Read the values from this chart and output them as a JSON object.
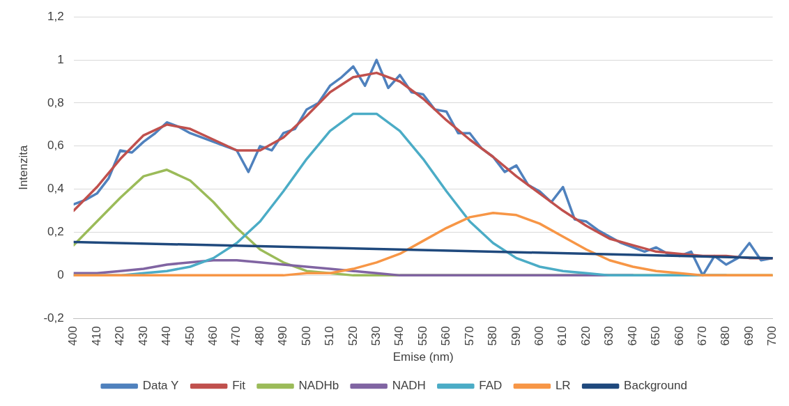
{
  "chart_data": {
    "type": "line",
    "xlabel": "Emise (nm)",
    "ylabel": "Intenzita",
    "x": [
      400,
      410,
      420,
      430,
      440,
      450,
      460,
      470,
      480,
      490,
      500,
      510,
      520,
      530,
      540,
      550,
      560,
      570,
      580,
      590,
      600,
      610,
      620,
      630,
      640,
      650,
      660,
      670,
      680,
      690,
      700
    ],
    "xlim": [
      400,
      700
    ],
    "xticks": [
      400,
      410,
      420,
      430,
      440,
      450,
      460,
      470,
      480,
      490,
      500,
      510,
      520,
      530,
      540,
      550,
      560,
      570,
      580,
      590,
      600,
      610,
      620,
      630,
      640,
      650,
      660,
      670,
      680,
      690,
      700
    ],
    "ylim": [
      -0.2,
      1.2
    ],
    "yticks": [
      {
        "value": -0.2,
        "label": "-0,2"
      },
      0,
      {
        "value": 0.2,
        "label": "0,2"
      },
      {
        "value": 0.4,
        "label": "0,4"
      },
      {
        "value": 0.6,
        "label": "0,6"
      },
      {
        "value": 0.8,
        "label": "0,8"
      },
      1,
      {
        "value": 1.2,
        "label": "1,2"
      }
    ],
    "grid": "y",
    "legend": "bottom",
    "marker": "none",
    "line_style": "solid",
    "series": [
      {
        "name": "Data Y",
        "color": "#4f81bd",
        "x": [
          400,
          405,
          410,
          415,
          420,
          425,
          430,
          435,
          440,
          445,
          450,
          455,
          460,
          465,
          470,
          475,
          480,
          485,
          490,
          495,
          500,
          505,
          510,
          515,
          520,
          525,
          530,
          535,
          540,
          545,
          550,
          555,
          560,
          565,
          570,
          575,
          580,
          585,
          590,
          595,
          600,
          605,
          610,
          615,
          620,
          625,
          630,
          635,
          640,
          645,
          650,
          655,
          660,
          665,
          670,
          675,
          680,
          685,
          690,
          695,
          700
        ],
        "values": [
          0.33,
          0.35,
          0.38,
          0.45,
          0.58,
          0.57,
          0.62,
          0.66,
          0.71,
          0.69,
          0.66,
          0.64,
          0.62,
          0.6,
          0.58,
          0.48,
          0.6,
          0.58,
          0.66,
          0.68,
          0.77,
          0.8,
          0.88,
          0.92,
          0.97,
          0.88,
          1.0,
          0.87,
          0.93,
          0.85,
          0.84,
          0.77,
          0.76,
          0.66,
          0.66,
          0.59,
          0.55,
          0.48,
          0.51,
          0.42,
          0.39,
          0.34,
          0.41,
          0.26,
          0.25,
          0.21,
          0.18,
          0.15,
          0.13,
          0.11,
          0.13,
          0.1,
          0.09,
          0.11,
          0.0,
          0.09,
          0.05,
          0.08,
          0.15,
          0.07,
          0.08
        ]
      },
      {
        "name": "Fit",
        "color": "#c0504d",
        "values": [
          0.3,
          0.41,
          0.54,
          0.65,
          0.7,
          0.68,
          0.63,
          0.58,
          0.58,
          0.64,
          0.74,
          0.85,
          0.92,
          0.94,
          0.9,
          0.82,
          0.72,
          0.63,
          0.55,
          0.46,
          0.38,
          0.3,
          0.23,
          0.17,
          0.14,
          0.11,
          0.1,
          0.09,
          0.09,
          0.08,
          0.08
        ]
      },
      {
        "name": "NADHb",
        "color": "#9bbb59",
        "values": [
          0.14,
          0.25,
          0.36,
          0.46,
          0.49,
          0.44,
          0.34,
          0.22,
          0.12,
          0.06,
          0.02,
          0.01,
          0,
          0,
          0,
          0,
          0,
          0,
          0,
          0,
          0,
          0,
          0,
          0,
          0,
          0,
          0,
          0,
          0,
          0,
          0
        ]
      },
      {
        "name": "NADH",
        "color": "#8064a2",
        "values": [
          0.01,
          0.01,
          0.02,
          0.03,
          0.05,
          0.06,
          0.07,
          0.07,
          0.06,
          0.05,
          0.04,
          0.03,
          0.02,
          0.01,
          0,
          0,
          0,
          0,
          0,
          0,
          0,
          0,
          0,
          0,
          0,
          null,
          null,
          null,
          null,
          null,
          null
        ]
      },
      {
        "name": "FAD",
        "color": "#4bacc6",
        "values": [
          0,
          0,
          0,
          0.01,
          0.02,
          0.04,
          0.08,
          0.15,
          0.25,
          0.39,
          0.54,
          0.67,
          0.75,
          0.75,
          0.67,
          0.54,
          0.39,
          0.25,
          0.15,
          0.08,
          0.04,
          0.02,
          0.01,
          0,
          0,
          0,
          0,
          0,
          0,
          null,
          null
        ]
      },
      {
        "name": "LR",
        "color": "#f79646",
        "values": [
          0,
          0,
          0,
          0,
          0,
          0,
          0,
          0,
          0,
          0,
          0.01,
          0.01,
          0.03,
          0.06,
          0.1,
          0.16,
          0.22,
          0.27,
          0.29,
          0.28,
          0.24,
          0.18,
          0.12,
          0.07,
          0.04,
          0.02,
          0.01,
          0,
          0,
          0,
          0
        ]
      },
      {
        "name": "Background",
        "color": "#1f497d",
        "x": [
          400,
          700
        ],
        "values": [
          0.155,
          0.08
        ]
      }
    ]
  }
}
